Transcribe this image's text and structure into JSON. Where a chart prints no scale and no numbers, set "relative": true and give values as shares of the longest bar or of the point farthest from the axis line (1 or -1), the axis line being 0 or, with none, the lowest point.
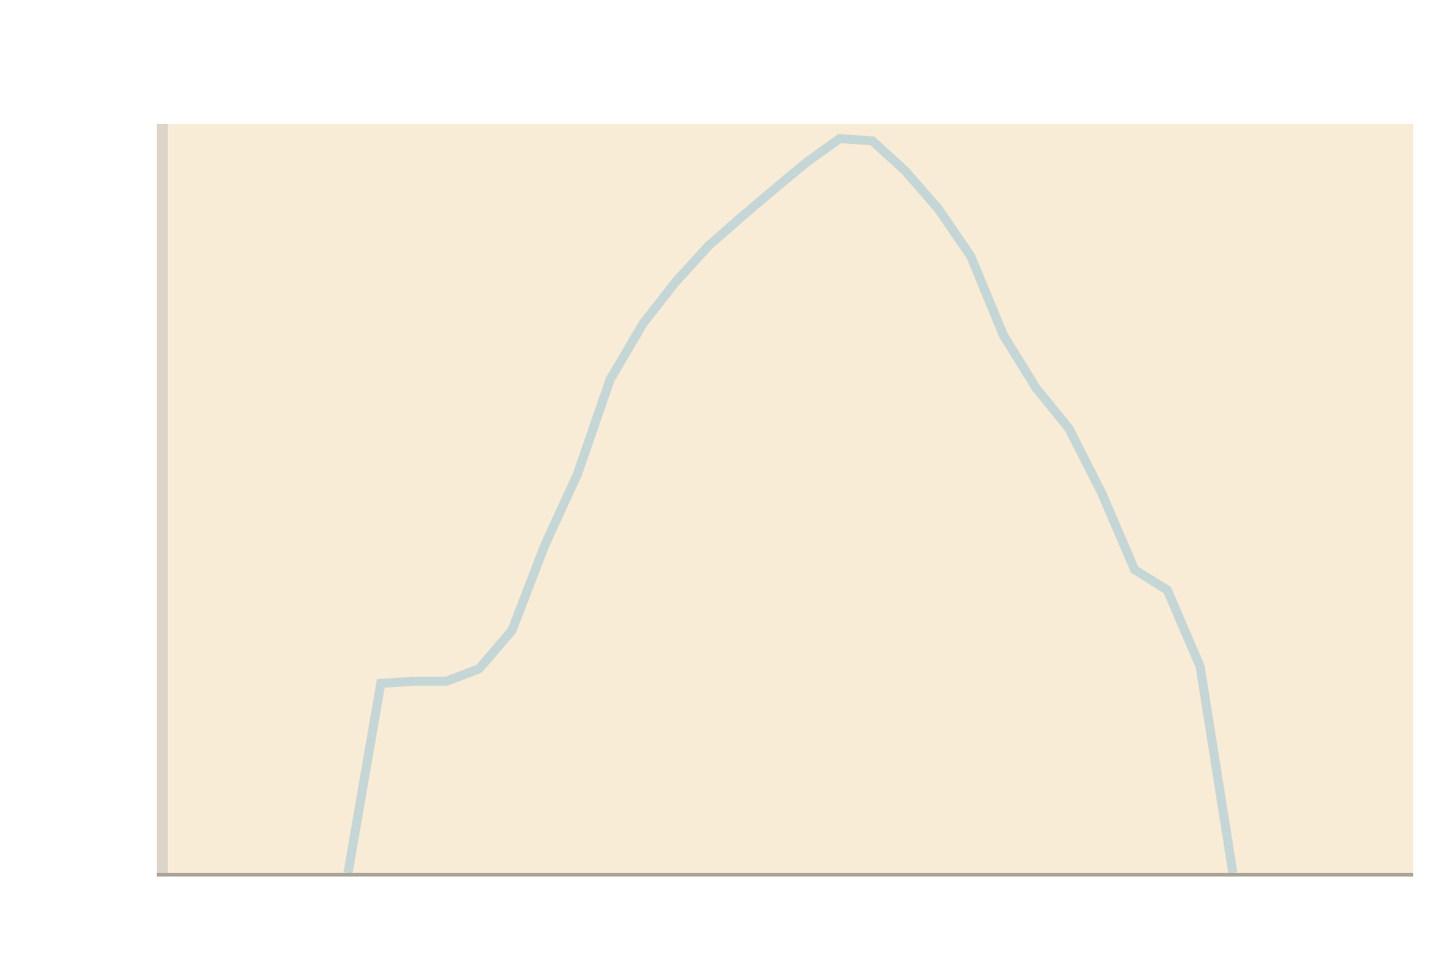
{
  "chart_data": {
    "type": "line",
    "relative": true,
    "marker": "none",
    "line_style": "solid",
    "categories": [
      null,
      null,
      null,
      null,
      null,
      null,
      null,
      null,
      null,
      null,
      null,
      null,
      null,
      null,
      null,
      null,
      null,
      null,
      null,
      null,
      null,
      null,
      null,
      null,
      null,
      null,
      null,
      null
    ],
    "series": [
      {
        "color": "#c5d6d6",
        "values": [
          0,
          0.258,
          0.261,
          0.261,
          0.278,
          0.33,
          0.446,
          0.543,
          0.672,
          0.748,
          0.805,
          0.854,
          0.893,
          0.931,
          0.968,
          1,
          0.997,
          0.956,
          0.905,
          0.84,
          0.732,
          0.66,
          0.605,
          0.517,
          0.413,
          0.385,
          0.281,
          0
        ]
      }
    ]
  }
}
